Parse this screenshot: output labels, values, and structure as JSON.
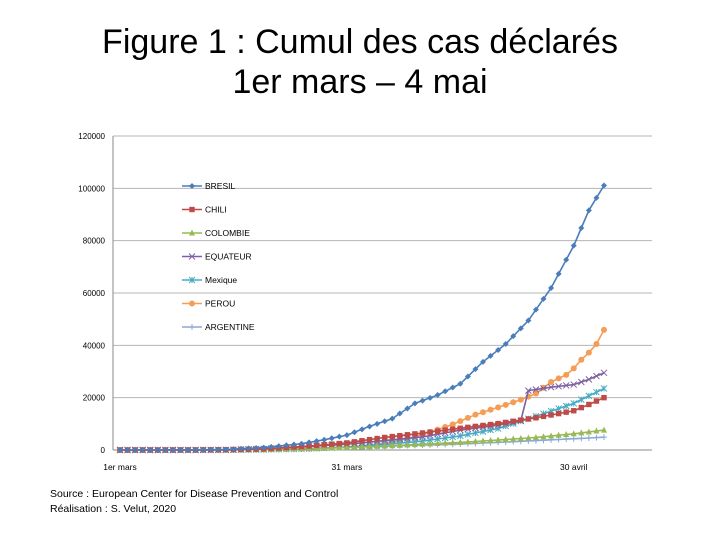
{
  "title": {
    "line1": "Figure 1 : Cumul des cas déclarés",
    "line2": "1er mars – 4 mai"
  },
  "footer": {
    "source": "Source : European Center for Disease Prevention and Control",
    "credit": "Réalisation : S. Velut, 2020"
  },
  "chart_data": {
    "type": "line",
    "x_start": "2020-03-01",
    "x_end": "2020-05-04",
    "x_ticks": [
      {
        "date": "2020-03-01",
        "label": "1er mars"
      },
      {
        "date": "2020-03-31",
        "label": "31 mars"
      },
      {
        "date": "2020-04-30",
        "label": "30 avril"
      }
    ],
    "ylim": [
      0,
      120000
    ],
    "y_ticks": [
      0,
      20000,
      40000,
      60000,
      80000,
      100000,
      120000
    ],
    "grid": true,
    "legend_position": "top-left",
    "series": [
      {
        "name": "BRESIL",
        "color": "#4a7ebb",
        "marker": "diamond",
        "points": [
          [
            "2020-03-01",
            0
          ],
          [
            "2020-03-10",
            30
          ],
          [
            "2020-03-15",
            200
          ],
          [
            "2020-03-20",
            900
          ],
          [
            "2020-03-25",
            2400
          ],
          [
            "2020-03-28",
            3900
          ],
          [
            "2020-03-31",
            5700
          ],
          [
            "2020-04-03",
            9000
          ],
          [
            "2020-04-06",
            12000
          ],
          [
            "2020-04-09",
            17800
          ],
          [
            "2020-04-12",
            21000
          ],
          [
            "2020-04-15",
            25300
          ],
          [
            "2020-04-18",
            33700
          ],
          [
            "2020-04-21",
            40500
          ],
          [
            "2020-04-24",
            49500
          ],
          [
            "2020-04-27",
            61900
          ],
          [
            "2020-04-30",
            78100
          ],
          [
            "2020-05-02",
            91600
          ],
          [
            "2020-05-04",
            101100
          ]
        ]
      },
      {
        "name": "CHILI",
        "color": "#be4b48",
        "marker": "square",
        "points": [
          [
            "2020-03-01",
            0
          ],
          [
            "2020-03-10",
            10
          ],
          [
            "2020-03-15",
            75
          ],
          [
            "2020-03-20",
            430
          ],
          [
            "2020-03-25",
            1300
          ],
          [
            "2020-03-31",
            2700
          ],
          [
            "2020-04-05",
            4800
          ],
          [
            "2020-04-10",
            6500
          ],
          [
            "2020-04-15",
            8300
          ],
          [
            "2020-04-20",
            10100
          ],
          [
            "2020-04-25",
            12300
          ],
          [
            "2020-04-30",
            15000
          ],
          [
            "2020-05-02",
            17400
          ],
          [
            "2020-05-04",
            20000
          ]
        ]
      },
      {
        "name": "COLOMBIE",
        "color": "#98b954",
        "marker": "triangle",
        "points": [
          [
            "2020-03-01",
            0
          ],
          [
            "2020-03-10",
            3
          ],
          [
            "2020-03-15",
            45
          ],
          [
            "2020-03-20",
            160
          ],
          [
            "2020-03-25",
            470
          ],
          [
            "2020-03-31",
            900
          ],
          [
            "2020-04-05",
            1500
          ],
          [
            "2020-04-10",
            2200
          ],
          [
            "2020-04-15",
            2900
          ],
          [
            "2020-04-20",
            3800
          ],
          [
            "2020-04-25",
            4800
          ],
          [
            "2020-04-30",
            6200
          ],
          [
            "2020-05-04",
            7600
          ]
        ]
      },
      {
        "name": "EQUATEUR",
        "color": "#7d60a0",
        "marker": "x",
        "points": [
          [
            "2020-03-01",
            0
          ],
          [
            "2020-03-10",
            15
          ],
          [
            "2020-03-15",
            30
          ],
          [
            "2020-03-20",
            400
          ],
          [
            "2020-03-25",
            1200
          ],
          [
            "2020-03-31",
            2200
          ],
          [
            "2020-04-05",
            3600
          ],
          [
            "2020-04-10",
            5000
          ],
          [
            "2020-04-15",
            7600
          ],
          [
            "2020-04-20",
            9500
          ],
          [
            "2020-04-23",
            11200
          ],
          [
            "2020-04-24",
            22700
          ],
          [
            "2020-04-27",
            24000
          ],
          [
            "2020-04-30",
            25000
          ],
          [
            "2020-05-02",
            27000
          ],
          [
            "2020-05-04",
            29500
          ]
        ]
      },
      {
        "name": "Mexique",
        "color": "#46aac5",
        "marker": "asterisk",
        "points": [
          [
            "2020-03-01",
            0
          ],
          [
            "2020-03-10",
            7
          ],
          [
            "2020-03-15",
            41
          ],
          [
            "2020-03-20",
            160
          ],
          [
            "2020-03-25",
            400
          ],
          [
            "2020-03-31",
            1100
          ],
          [
            "2020-04-05",
            2100
          ],
          [
            "2020-04-10",
            3400
          ],
          [
            "2020-04-15",
            5400
          ],
          [
            "2020-04-20",
            8200
          ],
          [
            "2020-04-25",
            12900
          ],
          [
            "2020-04-30",
            17800
          ],
          [
            "2020-05-02",
            20700
          ],
          [
            "2020-05-04",
            23500
          ]
        ]
      },
      {
        "name": "PEROU",
        "color": "#f59d56",
        "marker": "circle",
        "points": [
          [
            "2020-03-01",
            0
          ],
          [
            "2020-03-10",
            10
          ],
          [
            "2020-03-15",
            70
          ],
          [
            "2020-03-20",
            250
          ],
          [
            "2020-03-25",
            480
          ],
          [
            "2020-03-31",
            1100
          ],
          [
            "2020-04-02",
            1500
          ],
          [
            "2020-04-05",
            2600
          ],
          [
            "2020-04-08",
            4300
          ],
          [
            "2020-04-11",
            6800
          ],
          [
            "2020-04-14",
            9800
          ],
          [
            "2020-04-17",
            13500
          ],
          [
            "2020-04-20",
            16300
          ],
          [
            "2020-04-23",
            19200
          ],
          [
            "2020-04-25",
            21600
          ],
          [
            "2020-04-27",
            26000
          ],
          [
            "2020-04-29",
            28700
          ],
          [
            "2020-04-30",
            31200
          ],
          [
            "2020-05-01",
            34500
          ],
          [
            "2020-05-02",
            37200
          ],
          [
            "2020-05-03",
            40500
          ],
          [
            "2020-05-04",
            45900
          ]
        ]
      },
      {
        "name": "ARGENTINE",
        "color": "#8aa9d6",
        "marker": "plus",
        "points": [
          [
            "2020-03-01",
            0
          ],
          [
            "2020-03-10",
            15
          ],
          [
            "2020-03-15",
            45
          ],
          [
            "2020-03-20",
            130
          ],
          [
            "2020-03-25",
            390
          ],
          [
            "2020-03-31",
            1050
          ],
          [
            "2020-04-05",
            1450
          ],
          [
            "2020-04-10",
            1900
          ],
          [
            "2020-04-15",
            2300
          ],
          [
            "2020-04-20",
            2900
          ],
          [
            "2020-04-25",
            3600
          ],
          [
            "2020-04-30",
            4300
          ],
          [
            "2020-05-04",
            4900
          ]
        ]
      }
    ]
  }
}
